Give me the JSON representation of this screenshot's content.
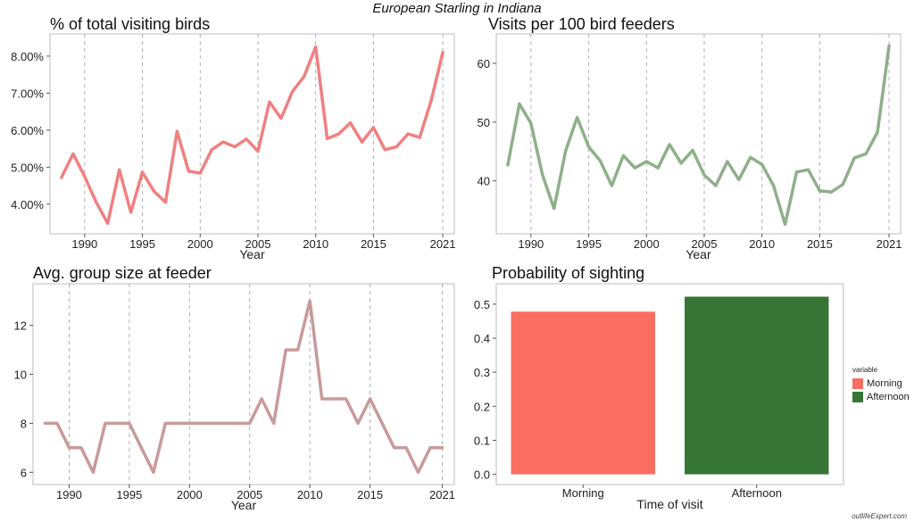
{
  "suptitle": "European Starling in Indiana",
  "watermark": "outlifeExpert.com",
  "chart_data": [
    {
      "type": "line",
      "title": "% of total visiting birds",
      "xlabel": "Year",
      "ylabel": "",
      "color": "#f08080",
      "xlim": [
        1987,
        2022
      ],
      "ylim": [
        3.2,
        8.6
      ],
      "x_ticks": [
        1990,
        1995,
        2000,
        2005,
        2010,
        2015,
        2021
      ],
      "y_ticks": [
        4,
        5,
        6,
        7,
        8
      ],
      "y_tick_labels": [
        "4.00%",
        "5.00%",
        "6.00%",
        "7.00%",
        "8.00%"
      ],
      "x": [
        1988,
        1989,
        1990,
        1991,
        1992,
        1993,
        1994,
        1995,
        1996,
        1997,
        1998,
        1999,
        2000,
        2001,
        2002,
        2003,
        2004,
        2005,
        2006,
        2007,
        2008,
        2009,
        2010,
        2011,
        2012,
        2013,
        2014,
        2015,
        2016,
        2017,
        2018,
        2019,
        2020,
        2021
      ],
      "y": [
        4.72,
        5.36,
        4.75,
        4.05,
        3.48,
        4.93,
        3.78,
        4.86,
        4.35,
        4.05,
        5.97,
        4.89,
        4.84,
        5.47,
        5.68,
        5.55,
        5.76,
        5.43,
        6.76,
        6.32,
        7.05,
        7.45,
        8.25,
        5.77,
        5.9,
        6.2,
        5.68,
        6.07,
        5.47,
        5.55,
        5.9,
        5.8,
        6.8,
        8.1
      ],
      "grid": "vertical-dashed"
    },
    {
      "type": "line",
      "title": "Visits per 100 bird feeders",
      "xlabel": "Year",
      "ylabel": "",
      "color": "#8fb08a",
      "xlim": [
        1987,
        2022
      ],
      "ylim": [
        31,
        65
      ],
      "x_ticks": [
        1990,
        1995,
        2000,
        2005,
        2010,
        2015,
        2021
      ],
      "y_ticks": [
        40,
        50,
        60
      ],
      "y_tick_labels": [
        "40",
        "50",
        "60"
      ],
      "x": [
        1988,
        1989,
        1990,
        1991,
        1992,
        1993,
        1994,
        1995,
        1996,
        1997,
        1998,
        1999,
        2000,
        2001,
        2002,
        2003,
        2004,
        2005,
        2006,
        2007,
        2008,
        2009,
        2010,
        2011,
        2012,
        2013,
        2014,
        2015,
        2016,
        2017,
        2018,
        2019,
        2020,
        2021
      ],
      "y": [
        42.7,
        53.1,
        49.8,
        41.0,
        35.3,
        45.1,
        50.8,
        45.8,
        43.4,
        39.2,
        44.3,
        42.2,
        43.3,
        42.2,
        46.2,
        43.0,
        45.2,
        41.0,
        39.2,
        43.3,
        40.2,
        44.0,
        42.8,
        39.2,
        32.6,
        41.5,
        41.9,
        38.3,
        38.1,
        39.4,
        43.9,
        44.6,
        48.3,
        63.0
      ],
      "grid": "vertical-dashed"
    },
    {
      "type": "line",
      "title": "Avg. group size at feeder",
      "xlabel": "Year",
      "ylabel": "",
      "color": "#c99a9a",
      "xlim": [
        1987,
        2022
      ],
      "ylim": [
        5.5,
        13.7
      ],
      "x_ticks": [
        1990,
        1995,
        2000,
        2005,
        2010,
        2015,
        2021
      ],
      "y_ticks": [
        6,
        8,
        10,
        12
      ],
      "y_tick_labels": [
        "6",
        "8",
        "10",
        "12"
      ],
      "x": [
        1988,
        1989,
        1990,
        1991,
        1992,
        1993,
        1994,
        1995,
        1996,
        1997,
        1998,
        1999,
        2000,
        2001,
        2002,
        2003,
        2004,
        2005,
        2006,
        2007,
        2008,
        2009,
        2010,
        2011,
        2012,
        2013,
        2014,
        2015,
        2016,
        2017,
        2018,
        2019,
        2020,
        2021
      ],
      "y": [
        8,
        8,
        7,
        7,
        6,
        8,
        8,
        8,
        7,
        6,
        8,
        8,
        8,
        8,
        8,
        8,
        8,
        8,
        9,
        8,
        11,
        11,
        13,
        9,
        9,
        9,
        8,
        9,
        8,
        7,
        7,
        6,
        7,
        7
      ],
      "grid": "vertical-dashed"
    },
    {
      "type": "bar",
      "title": "Probability of sighting",
      "xlabel": "Time of visit",
      "ylabel": "",
      "categories": [
        "Morning",
        "Afternoon"
      ],
      "values": [
        0.478,
        0.522
      ],
      "colors": [
        "#fa6e62",
        "#377535"
      ],
      "ylim": [
        -0.03,
        0.56
      ],
      "y_ticks": [
        0.0,
        0.1,
        0.2,
        0.3,
        0.4,
        0.5
      ],
      "y_tick_labels": [
        "0.0",
        "0.1",
        "0.2",
        "0.3",
        "0.4",
        "0.5"
      ],
      "legend": {
        "title": "variable",
        "entries": [
          "Morning",
          "Afternoon"
        ],
        "position": "right"
      }
    }
  ]
}
